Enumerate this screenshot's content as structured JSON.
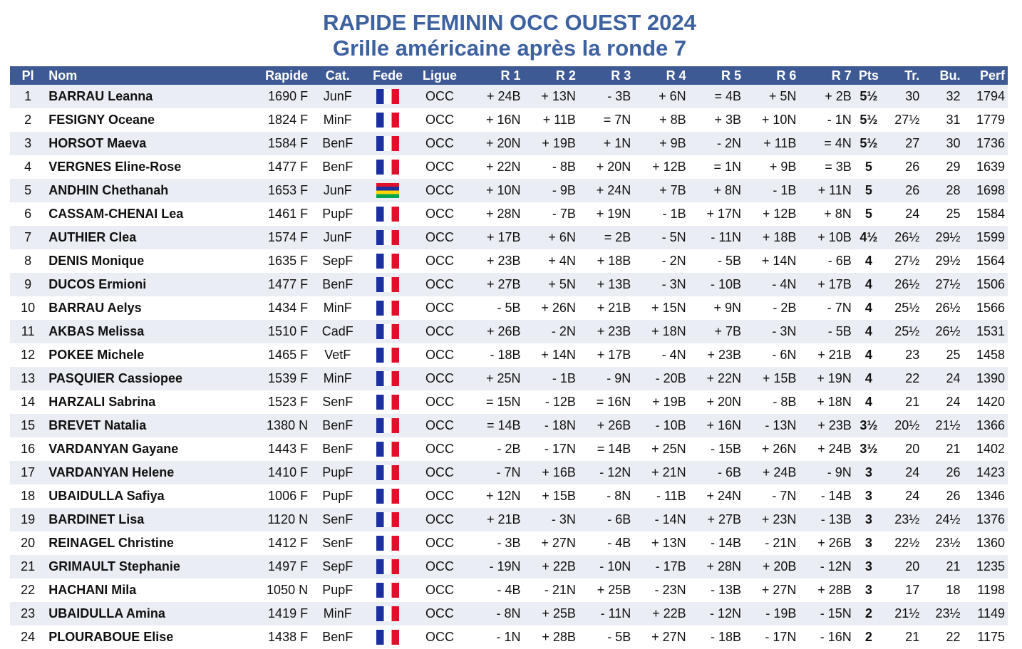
{
  "title_line1": "RAPIDE FEMININ OCC OUEST 2024",
  "title_line2": "Grille américaine après la ronde 7",
  "columns": {
    "pl": "Pl",
    "nom": "Nom",
    "rapide": "Rapide",
    "cat": "Cat.",
    "fede": "Fede",
    "ligue": "Ligue",
    "r1": "R 1",
    "r2": "R 2",
    "r3": "R 3",
    "r4": "R 4",
    "r5": "R 5",
    "r6": "R 6",
    "r7": "R 7",
    "pts": "Pts",
    "tr": "Tr.",
    "bu": "Bu.",
    "perf": "Perf"
  },
  "flags": {
    "FRA": {
      "name": "france-flag-icon",
      "colors": [
        "#1c2fa0",
        "#ffffff",
        "#e0102a"
      ]
    },
    "MRI": {
      "name": "mauritius-flag-icon",
      "colors": [
        "#e0102a",
        "#1c2fa0",
        "#ffd500",
        "#00a551"
      ]
    }
  },
  "players": [
    {
      "pl": "1",
      "nom": "BARRAU Leanna",
      "rapide": "1690 F",
      "cat": "JunF",
      "fede": "FRA",
      "ligue": "OCC",
      "r": [
        "+ 24B",
        "+ 13N",
        "-  3B",
        "+  6N",
        "=  4B",
        "+  5N",
        "+  2B"
      ],
      "pts": "5½",
      "tr": "30",
      "bu": "32",
      "perf": "1794"
    },
    {
      "pl": "2",
      "nom": "FESIGNY Oceane",
      "rapide": "1824 F",
      "cat": "MinF",
      "fede": "FRA",
      "ligue": "OCC",
      "r": [
        "+ 16N",
        "+ 11B",
        "=  7N",
        "+  8B",
        "+  3B",
        "+ 10N",
        "-  1N"
      ],
      "pts": "5½",
      "tr": "27½",
      "bu": "31",
      "perf": "1779"
    },
    {
      "pl": "3",
      "nom": "HORSOT Maeva",
      "rapide": "1584 F",
      "cat": "BenF",
      "fede": "FRA",
      "ligue": "OCC",
      "r": [
        "+ 20N",
        "+ 19B",
        "+  1N",
        "+  9B",
        "-  2N",
        "+ 11B",
        "=  4N"
      ],
      "pts": "5½",
      "tr": "27",
      "bu": "30",
      "perf": "1736"
    },
    {
      "pl": "4",
      "nom": "VERGNES Eline-Rose",
      "rapide": "1477 F",
      "cat": "BenF",
      "fede": "FRA",
      "ligue": "OCC",
      "r": [
        "+ 22N",
        "-  8B",
        "+ 20N",
        "+ 12B",
        "=  1N",
        "+  9B",
        "=  3B"
      ],
      "pts": "5",
      "tr": "26",
      "bu": "29",
      "perf": "1639"
    },
    {
      "pl": "5",
      "nom": "ANDHIN Chethanah",
      "rapide": "1653 F",
      "cat": "JunF",
      "fede": "MRI",
      "ligue": "OCC",
      "r": [
        "+ 10N",
        "-  9B",
        "+ 24N",
        "+  7B",
        "+  8N",
        "-  1B",
        "+ 11N"
      ],
      "pts": "5",
      "tr": "26",
      "bu": "28",
      "perf": "1698"
    },
    {
      "pl": "6",
      "nom": "CASSAM-CHENAI Lea",
      "rapide": "1461 F",
      "cat": "PupF",
      "fede": "FRA",
      "ligue": "OCC",
      "r": [
        "+ 28N",
        "-  7B",
        "+ 19N",
        "-  1B",
        "+ 17N",
        "+ 12B",
        "+  8N"
      ],
      "pts": "5",
      "tr": "24",
      "bu": "25",
      "perf": "1584"
    },
    {
      "pl": "7",
      "nom": "AUTHIER Clea",
      "rapide": "1574 F",
      "cat": "JunF",
      "fede": "FRA",
      "ligue": "OCC",
      "r": [
        "+ 17B",
        "+  6N",
        "=  2B",
        "-  5N",
        "- 11N",
        "+ 18B",
        "+ 10B"
      ],
      "pts": "4½",
      "tr": "26½",
      "bu": "29½",
      "perf": "1599"
    },
    {
      "pl": "8",
      "nom": "DENIS Monique",
      "rapide": "1635 F",
      "cat": "SepF",
      "fede": "FRA",
      "ligue": "OCC",
      "r": [
        "+ 23B",
        "+  4N",
        "+ 18B",
        "-  2N",
        "-  5B",
        "+ 14N",
        "-  6B"
      ],
      "pts": "4",
      "tr": "27½",
      "bu": "29½",
      "perf": "1564"
    },
    {
      "pl": "9",
      "nom": "DUCOS Ermioni",
      "rapide": "1477 F",
      "cat": "BenF",
      "fede": "FRA",
      "ligue": "OCC",
      "r": [
        "+ 27B",
        "+  5N",
        "+ 13B",
        "-  3N",
        "- 10B",
        "-  4N",
        "+ 17B"
      ],
      "pts": "4",
      "tr": "26½",
      "bu": "27½",
      "perf": "1506"
    },
    {
      "pl": "10",
      "nom": "BARRAU Aelys",
      "rapide": "1434 F",
      "cat": "MinF",
      "fede": "FRA",
      "ligue": "OCC",
      "r": [
        "-  5B",
        "+ 26N",
        "+ 21B",
        "+ 15N",
        "+  9N",
        "-  2B",
        "-  7N"
      ],
      "pts": "4",
      "tr": "25½",
      "bu": "26½",
      "perf": "1566"
    },
    {
      "pl": "11",
      "nom": "AKBAS Melissa",
      "rapide": "1510 F",
      "cat": "CadF",
      "fede": "FRA",
      "ligue": "OCC",
      "r": [
        "+ 26B",
        "-  2N",
        "+ 23B",
        "+ 18N",
        "+  7B",
        "-  3N",
        "-  5B"
      ],
      "pts": "4",
      "tr": "25½",
      "bu": "26½",
      "perf": "1531"
    },
    {
      "pl": "12",
      "nom": "POKEE Michele",
      "rapide": "1465 F",
      "cat": "VetF",
      "fede": "FRA",
      "ligue": "OCC",
      "r": [
        "- 18B",
        "+ 14N",
        "+ 17B",
        "-  4N",
        "+ 23B",
        "-  6N",
        "+ 21B"
      ],
      "pts": "4",
      "tr": "23",
      "bu": "25",
      "perf": "1458"
    },
    {
      "pl": "13",
      "nom": "PASQUIER Cassiopee",
      "rapide": "1539 F",
      "cat": "MinF",
      "fede": "FRA",
      "ligue": "OCC",
      "r": [
        "+ 25N",
        "-  1B",
        "-  9N",
        "- 20B",
        "+ 22N",
        "+ 15B",
        "+ 19N"
      ],
      "pts": "4",
      "tr": "22",
      "bu": "24",
      "perf": "1390"
    },
    {
      "pl": "14",
      "nom": "HARZALI Sabrina",
      "rapide": "1523 F",
      "cat": "SenF",
      "fede": "FRA",
      "ligue": "OCC",
      "r": [
        "= 15N",
        "- 12B",
        "= 16N",
        "+ 19B",
        "+ 20N",
        "-  8B",
        "+ 18N"
      ],
      "pts": "4",
      "tr": "21",
      "bu": "24",
      "perf": "1420"
    },
    {
      "pl": "15",
      "nom": "BREVET Natalia",
      "rapide": "1380 N",
      "cat": "BenF",
      "fede": "FRA",
      "ligue": "OCC",
      "r": [
        "= 14B",
        "- 18N",
        "+ 26B",
        "- 10B",
        "+ 16N",
        "- 13N",
        "+ 23B"
      ],
      "pts": "3½",
      "tr": "20½",
      "bu": "21½",
      "perf": "1366"
    },
    {
      "pl": "16",
      "nom": "VARDANYAN Gayane",
      "rapide": "1443 F",
      "cat": "BenF",
      "fede": "FRA",
      "ligue": "OCC",
      "r": [
        "-  2B",
        "- 17N",
        "= 14B",
        "+ 25N",
        "- 15B",
        "+ 26N",
        "+ 24B"
      ],
      "pts": "3½",
      "tr": "20",
      "bu": "21",
      "perf": "1402"
    },
    {
      "pl": "17",
      "nom": "VARDANYAN Helene",
      "rapide": "1410 F",
      "cat": "PupF",
      "fede": "FRA",
      "ligue": "OCC",
      "r": [
        "-  7N",
        "+ 16B",
        "- 12N",
        "+ 21N",
        "-  6B",
        "+ 24B",
        "-  9N"
      ],
      "pts": "3",
      "tr": "24",
      "bu": "26",
      "perf": "1423"
    },
    {
      "pl": "18",
      "nom": "UBAIDULLA Safiya",
      "rapide": "1006 F",
      "cat": "PupF",
      "fede": "FRA",
      "ligue": "OCC",
      "r": [
        "+ 12N",
        "+ 15B",
        "-  8N",
        "- 11B",
        "+ 24N",
        "-  7N",
        "- 14B"
      ],
      "pts": "3",
      "tr": "24",
      "bu": "26",
      "perf": "1346"
    },
    {
      "pl": "19",
      "nom": "BARDINET Lisa",
      "rapide": "1120 N",
      "cat": "SenF",
      "fede": "FRA",
      "ligue": "OCC",
      "r": [
        "+ 21B",
        "-  3N",
        "-  6B",
        "- 14N",
        "+ 27B",
        "+ 23N",
        "- 13B"
      ],
      "pts": "3",
      "tr": "23½",
      "bu": "24½",
      "perf": "1376"
    },
    {
      "pl": "20",
      "nom": "REINAGEL Christine",
      "rapide": "1412 F",
      "cat": "SenF",
      "fede": "FRA",
      "ligue": "OCC",
      "r": [
        "-  3B",
        "+ 27N",
        "-  4B",
        "+ 13N",
        "- 14B",
        "- 21N",
        "+ 26B"
      ],
      "pts": "3",
      "tr": "22½",
      "bu": "23½",
      "perf": "1360"
    },
    {
      "pl": "21",
      "nom": "GRIMAULT Stephanie",
      "rapide": "1497 F",
      "cat": "SepF",
      "fede": "FRA",
      "ligue": "OCC",
      "r": [
        "- 19N",
        "+ 22B",
        "- 10N",
        "- 17B",
        "+ 28N",
        "+ 20B",
        "- 12N"
      ],
      "pts": "3",
      "tr": "20",
      "bu": "21",
      "perf": "1235"
    },
    {
      "pl": "22",
      "nom": "HACHANI Mila",
      "rapide": "1050 N",
      "cat": "PupF",
      "fede": "FRA",
      "ligue": "OCC",
      "r": [
        "-  4B",
        "- 21N",
        "+ 25B",
        "- 23N",
        "- 13B",
        "+ 27N",
        "+ 28B"
      ],
      "pts": "3",
      "tr": "17",
      "bu": "18",
      "perf": "1198"
    },
    {
      "pl": "23",
      "nom": "UBAIDULLA Amina",
      "rapide": "1419 F",
      "cat": "MinF",
      "fede": "FRA",
      "ligue": "OCC",
      "r": [
        "-  8N",
        "+ 25B",
        "- 11N",
        "+ 22B",
        "- 12N",
        "- 19B",
        "- 15N"
      ],
      "pts": "2",
      "tr": "21½",
      "bu": "23½",
      "perf": "1149"
    },
    {
      "pl": "24",
      "nom": "PLOURABOUE Elise",
      "rapide": "1438 F",
      "cat": "BenF",
      "fede": "FRA",
      "ligue": "OCC",
      "r": [
        "-  1N",
        "+ 28B",
        "-  5B",
        "+ 27N",
        "- 18B",
        "- 17N",
        "- 16N"
      ],
      "pts": "2",
      "tr": "21",
      "bu": "22",
      "perf": "1175"
    }
  ]
}
